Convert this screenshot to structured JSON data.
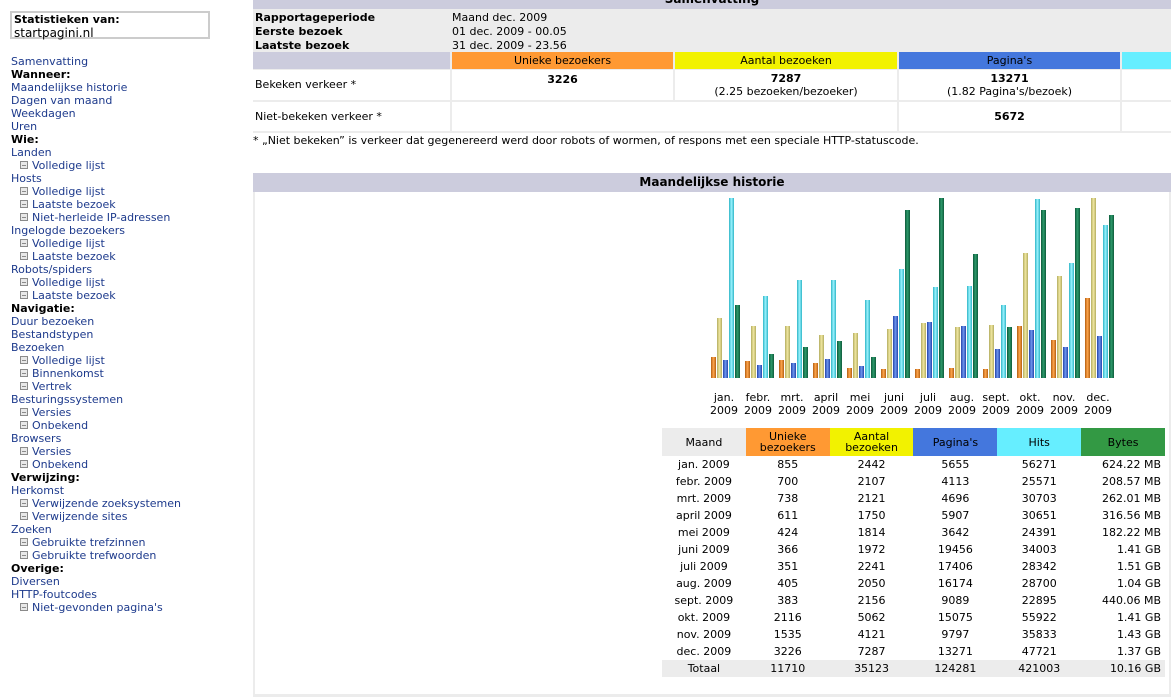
{
  "sidebar": {
    "site_label": "Statistieken van:",
    "site_value": "startpagini.nl",
    "menu": [
      {
        "type": "link",
        "label": "Samenvatting"
      },
      {
        "type": "hdr",
        "label": "Wanneer:"
      },
      {
        "type": "link",
        "label": "Maandelijkse historie"
      },
      {
        "type": "link",
        "label": "Dagen van maand"
      },
      {
        "type": "link",
        "label": "Weekdagen"
      },
      {
        "type": "link",
        "label": "Uren"
      },
      {
        "type": "hdr",
        "label": "Wie:"
      },
      {
        "type": "link",
        "label": "Landen"
      },
      {
        "type": "sub",
        "label": "Volledige lijst"
      },
      {
        "type": "link",
        "label": "Hosts"
      },
      {
        "type": "sub",
        "label": "Volledige lijst"
      },
      {
        "type": "sub",
        "label": "Laatste bezoek"
      },
      {
        "type": "sub",
        "label": "Niet-herleide IP-adressen"
      },
      {
        "type": "link",
        "label": "Ingelogde bezoekers"
      },
      {
        "type": "sub",
        "label": "Volledige lijst"
      },
      {
        "type": "sub",
        "label": "Laatste bezoek"
      },
      {
        "type": "link",
        "label": "Robots/spiders"
      },
      {
        "type": "sub",
        "label": "Volledige lijst"
      },
      {
        "type": "sub",
        "label": "Laatste bezoek"
      },
      {
        "type": "hdr",
        "label": "Navigatie:"
      },
      {
        "type": "link",
        "label": "Duur bezoeken"
      },
      {
        "type": "link",
        "label": "Bestandstypen"
      },
      {
        "type": "link",
        "label": "Bezoeken"
      },
      {
        "type": "sub",
        "label": "Volledige lijst"
      },
      {
        "type": "sub",
        "label": "Binnenkomst"
      },
      {
        "type": "sub",
        "label": "Vertrek"
      },
      {
        "type": "link",
        "label": "Besturingssystemen"
      },
      {
        "type": "sub",
        "label": "Versies"
      },
      {
        "type": "sub",
        "label": "Onbekend"
      },
      {
        "type": "link",
        "label": "Browsers"
      },
      {
        "type": "sub",
        "label": "Versies"
      },
      {
        "type": "sub",
        "label": "Onbekend"
      },
      {
        "type": "hdr",
        "label": "Verwijzing:"
      },
      {
        "type": "link",
        "label": "Herkomst"
      },
      {
        "type": "sub",
        "label": "Verwijzende zoeksystemen"
      },
      {
        "type": "sub",
        "label": "Verwijzende sites"
      },
      {
        "type": "link",
        "label": "Zoeken"
      },
      {
        "type": "sub",
        "label": "Gebruikte trefzinnen"
      },
      {
        "type": "sub",
        "label": "Gebruikte trefwoorden"
      },
      {
        "type": "hdr",
        "label": "Overige:"
      },
      {
        "type": "link",
        "label": "Diversen"
      },
      {
        "type": "link",
        "label": "HTTP-foutcodes"
      },
      {
        "type": "sub",
        "label": "Niet-gevonden pagina's"
      }
    ]
  },
  "summary": {
    "title": "Samenvatting",
    "period_label": "Rapportageperiode",
    "period_value": "Maand dec. 2009",
    "first_label": "Eerste bezoek",
    "first_value": "01 dec. 2009 - 00.05",
    "last_label": "Laatste bezoek",
    "last_value": "31 dec. 2009 - 23.56",
    "col_unique": "Unieke bezoekers",
    "col_visits": "Aantal bezoeken",
    "col_pages": "Pagina's",
    "viewed_label": "Bekeken verkeer *",
    "viewed_unique": "3226",
    "viewed_visits": "7287",
    "viewed_visits_sub": "(2.25 bezoeken/bezoeker)",
    "viewed_pages": "13271",
    "viewed_pages_sub": "(1.82 Pagina's/bezoek)",
    "notviewed_label": "Niet-bekeken verkeer *",
    "notviewed_pages": "5672",
    "footnote": "* „Niet bekeken” is verkeer dat gegenereerd werd door robots of wormen, of respons met een speciale HTTP-statuscode."
  },
  "history": {
    "title": "Maandelijkse historie",
    "headers": {
      "month": "Maand",
      "unique": "Unieke bezoekers",
      "visits": "Aantal bezoeken",
      "pages": "Pagina's",
      "hits": "Hits",
      "bytes": "Bytes"
    },
    "total": {
      "label": "Totaal",
      "unique": "11710",
      "visits": "35123",
      "pages": "124281",
      "hits": "421003",
      "bytes": "10.16 GB"
    }
  },
  "colors": {
    "unique": "#ff9933",
    "visits": "#f2f200",
    "pages": "#4477dd",
    "hits": "#66eeff",
    "bytes": "#339944",
    "section_head": "#ccccdd",
    "panel": "#ececec",
    "link": "#1d3a8c"
  },
  "chart_data": {
    "type": "bar",
    "categories": [
      "jan.\n2009",
      "febr.\n2009",
      "mrt.\n2009",
      "april\n2009",
      "mei\n2009",
      "juni\n2009",
      "juli\n2009",
      "aug.\n2009",
      "sept.\n2009",
      "okt.\n2009",
      "nov.\n2009",
      "dec.\n2009"
    ],
    "series": [
      {
        "name": "Unieke bezoekers",
        "key": "unique",
        "values": [
          855,
          700,
          738,
          611,
          424,
          366,
          351,
          405,
          383,
          2116,
          1535,
          3226
        ],
        "display": [
          "855",
          "700",
          "738",
          "611",
          "424",
          "366",
          "351",
          "405",
          "383",
          "2116",
          "1535",
          "3226"
        ]
      },
      {
        "name": "Aantal bezoeken",
        "key": "visits",
        "values": [
          2442,
          2107,
          2121,
          1750,
          1814,
          1972,
          2241,
          2050,
          2156,
          5062,
          4121,
          7287
        ],
        "display": [
          "2442",
          "2107",
          "2121",
          "1750",
          "1814",
          "1972",
          "2241",
          "2050",
          "2156",
          "5062",
          "4121",
          "7287"
        ]
      },
      {
        "name": "Pagina's",
        "key": "pages",
        "values": [
          5655,
          4113,
          4696,
          5907,
          3642,
          19456,
          17406,
          16174,
          9089,
          15075,
          9797,
          13271
        ],
        "display": [
          "5655",
          "4113",
          "4696",
          "5907",
          "3642",
          "19456",
          "17406",
          "16174",
          "9089",
          "15075",
          "9797",
          "13271"
        ]
      },
      {
        "name": "Hits",
        "key": "hits",
        "values": [
          56271,
          25571,
          30703,
          30651,
          24391,
          34003,
          28342,
          28700,
          22895,
          55922,
          35833,
          47721
        ],
        "display": [
          "56271",
          "25571",
          "30703",
          "30651",
          "24391",
          "34003",
          "28342",
          "28700",
          "22895",
          "55922",
          "35833",
          "47721"
        ]
      },
      {
        "name": "Bytes",
        "key": "bytes",
        "values": [
          624.22,
          208.57,
          262.01,
          316.56,
          182.22,
          1443.84,
          1546.24,
          1064.96,
          440.06,
          1443.84,
          1464.32,
          1402.88
        ],
        "unit": "MB",
        "display": [
          "624.22 MB",
          "208.57 MB",
          "262.01 MB",
          "316.56 MB",
          "182.22 MB",
          "1.41 GB",
          "1.51 GB",
          "1.04 GB",
          "440.06 MB",
          "1.41 GB",
          "1.43 GB",
          "1.37 GB"
        ]
      }
    ],
    "month_labels": [
      "jan. 2009",
      "febr. 2009",
      "mrt. 2009",
      "april 2009",
      "mei 2009",
      "juni 2009",
      "juli 2009",
      "aug. 2009",
      "sept. 2009",
      "okt. 2009",
      "nov. 2009",
      "dec. 2009"
    ],
    "scale": "per-series max"
  }
}
